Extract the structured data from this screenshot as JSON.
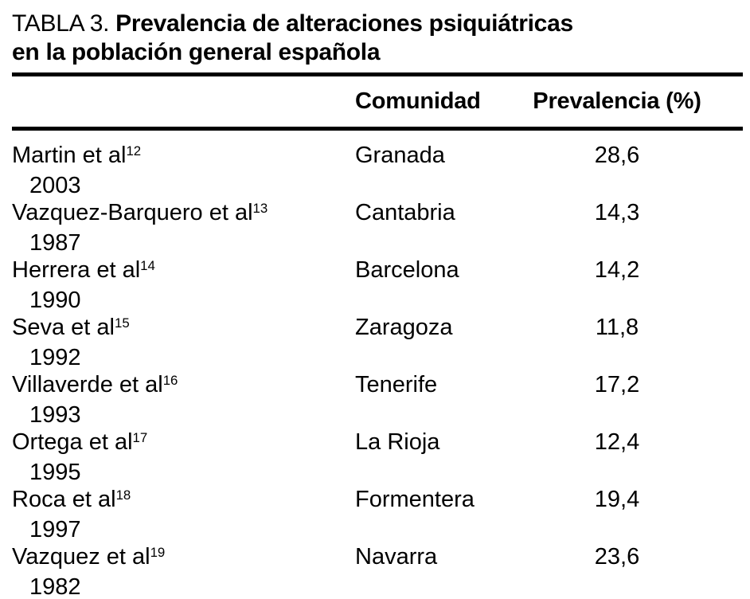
{
  "title": {
    "label": "TABLA 3.",
    "line1": "Prevalencia de alteraciones psiquiátricas",
    "line2": "en la población general española"
  },
  "table": {
    "columns": {
      "community": "Comunidad",
      "prevalence": "Prevalencia (%)"
    },
    "rows": [
      {
        "author": "Martin et al",
        "ref": "12",
        "year": "2003",
        "community": "Granada",
        "prevalence": "28,6"
      },
      {
        "author": "Vazquez-Barquero et al",
        "ref": "13",
        "year": "1987",
        "community": "Cantabria",
        "prevalence": "14,3"
      },
      {
        "author": "Herrera et al",
        "ref": "14",
        "year": "1990",
        "community": "Barcelona",
        "prevalence": "14,2"
      },
      {
        "author": "Seva et al",
        "ref": "15",
        "year": "1992",
        "community": "Zaragoza",
        "prevalence": "11,8"
      },
      {
        "author": "Villaverde et al",
        "ref": "16",
        "year": "1993",
        "community": "Tenerife",
        "prevalence": "17,2"
      },
      {
        "author": "Ortega et al",
        "ref": "17",
        "year": "1995",
        "community": "La Rioja",
        "prevalence": "12,4"
      },
      {
        "author": "Roca et al",
        "ref": "18",
        "year": "1997",
        "community": "Formentera",
        "prevalence": "19,4"
      },
      {
        "author": "Vazquez et al",
        "ref": "19",
        "year": "1982",
        "community": "Navarra",
        "prevalence": "23,6"
      }
    ]
  },
  "colors": {
    "background": "#ffffff",
    "text": "#000000",
    "rule": "#000000"
  }
}
